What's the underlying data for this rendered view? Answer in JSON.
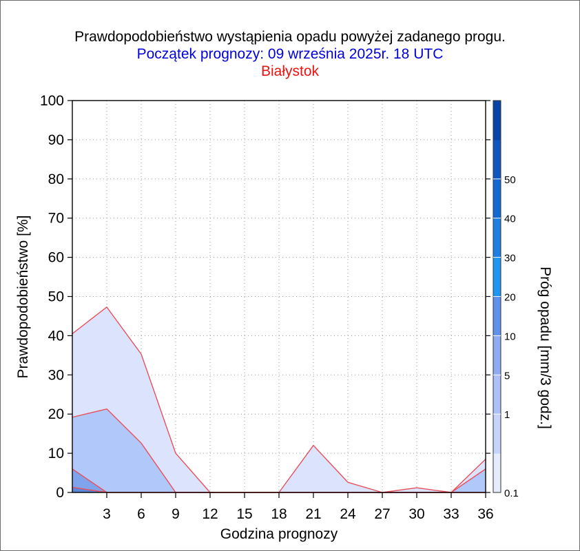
{
  "title": "Prawdopodobieństwo wystąpienia opadu powyżej zadanego progu.",
  "subtitle": "Początek prognozy: 09 września 2025r. 18 UTC",
  "location": "Białystok",
  "colors": {
    "title": "#000000",
    "subtitle": "#0000dd",
    "location": "#ee1111",
    "series_line": "#e8505b"
  },
  "chart_data": {
    "type": "area",
    "xlabel": "Godzina prognozy",
    "ylabel": "Prawdopodobieństwo [%]",
    "xticks": [
      3,
      6,
      9,
      12,
      15,
      18,
      21,
      24,
      27,
      30,
      33,
      36
    ],
    "yticks": [
      0,
      10,
      20,
      30,
      40,
      50,
      60,
      70,
      80,
      90,
      100
    ],
    "xlim": [
      0,
      36
    ],
    "ylim": [
      0,
      100
    ],
    "grid": true,
    "x": [
      0,
      3,
      6,
      9,
      12,
      15,
      18,
      21,
      24,
      27,
      30,
      33,
      36
    ],
    "series": [
      {
        "threshold": 0.1,
        "color": "#dce3fd",
        "values": [
          40.5,
          47.3,
          35.3,
          10,
          0,
          0,
          0,
          12,
          2.6,
          0,
          1.2,
          0,
          8.5
        ]
      },
      {
        "threshold": 1,
        "color": "#b1c8fb",
        "values": [
          19.2,
          21.3,
          12.6,
          0,
          0,
          0,
          0,
          0,
          0,
          0,
          0,
          0,
          6
        ]
      },
      {
        "threshold": 5,
        "color": "#7fa3ec",
        "values": [
          6,
          0,
          0,
          0,
          0,
          0,
          0,
          0,
          0,
          0,
          0,
          0,
          0
        ]
      },
      {
        "threshold": 10,
        "color": "#5c86da",
        "values": [
          1.3,
          0,
          0,
          0,
          0,
          0,
          0,
          0,
          0,
          0,
          0,
          0,
          0
        ]
      }
    ],
    "colorbar": {
      "label": "Próg opadu [mm/3 godz.]",
      "ticks": [
        "0.1",
        "1",
        "5",
        "10",
        "20",
        "30",
        "40",
        "50"
      ],
      "bands": [
        "#e6ebfe",
        "#c6d3fb",
        "#aec0f8",
        "#8fabf2",
        "#5f92ea",
        "#1f97f2",
        "#1d7fe3",
        "#1468d1",
        "#0f57be",
        "#0843a6"
      ]
    }
  }
}
